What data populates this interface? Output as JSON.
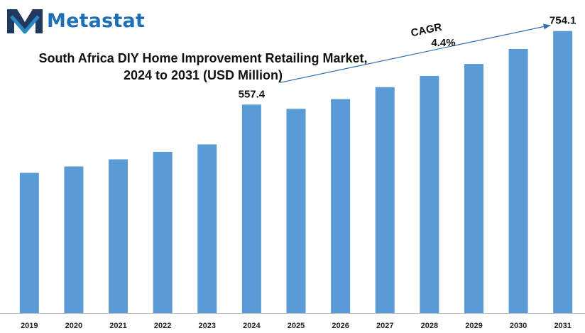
{
  "brand": {
    "name": "Metastat",
    "logo_icon": "metastat-m-logo-icon",
    "colors": {
      "text": "#1d6fb8",
      "mark_dark": "#1f3a5c",
      "mark_blue": "#2b86c8"
    }
  },
  "chart_data": {
    "type": "bar",
    "title_line1": "South Africa DIY Home Improvement Retailing Market,",
    "title_line2": "2024 to 2031 (USD Million)",
    "categories": [
      "2019",
      "2020",
      "2021",
      "2022",
      "2023",
      "2024",
      "2025",
      "2026",
      "2027",
      "2028",
      "2029",
      "2030",
      "2031"
    ],
    "values": [
      375.0,
      392.0,
      411.0,
      431.0,
      451.0,
      557.4,
      546.0,
      572.0,
      604.0,
      634.0,
      666.0,
      706.0,
      754.1
    ],
    "ylim": [
      0,
      780
    ],
    "grid": false,
    "bar_color": "#5b9bd5",
    "data_labels": [
      {
        "category": "2024",
        "text": "557.4"
      },
      {
        "category": "2031",
        "text": "754.1"
      }
    ],
    "annotation": {
      "label_line1": "CAGR",
      "label_line2": "4.4%",
      "from_category": "2024",
      "to_category": "2031"
    }
  }
}
